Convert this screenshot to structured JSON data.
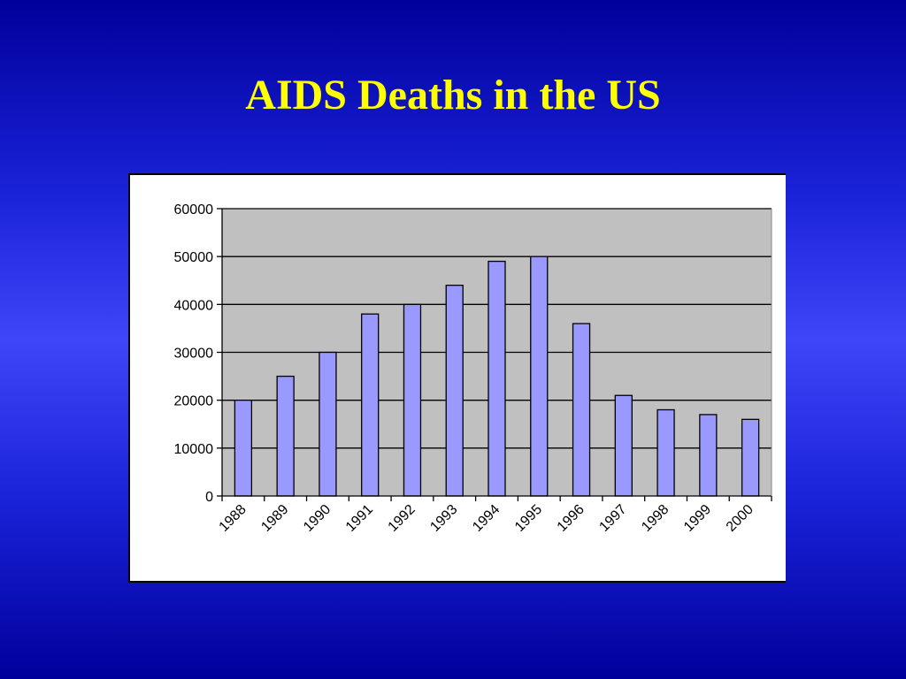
{
  "slide": {
    "title": "AIDS Deaths in the US"
  },
  "colors": {
    "background": "#1a22d8",
    "title": "#ffff00",
    "plot_area": "#c0c0c0",
    "bar_fill": "#9999ff",
    "bar_stroke": "#000000",
    "gridline": "#000000"
  },
  "chart_data": {
    "type": "bar",
    "categories": [
      "1988",
      "1989",
      "1990",
      "1991",
      "1992",
      "1993",
      "1994",
      "1995",
      "1996",
      "1997",
      "1998",
      "1999",
      "2000"
    ],
    "values": [
      20000,
      25000,
      30000,
      38000,
      40000,
      44000,
      49000,
      50000,
      36000,
      21000,
      18000,
      17000,
      16000
    ],
    "yticks": [
      "0",
      "10000",
      "20000",
      "30000",
      "40000",
      "50000",
      "60000"
    ],
    "ylim": [
      0,
      60000
    ],
    "grid": true,
    "legend": "none"
  }
}
